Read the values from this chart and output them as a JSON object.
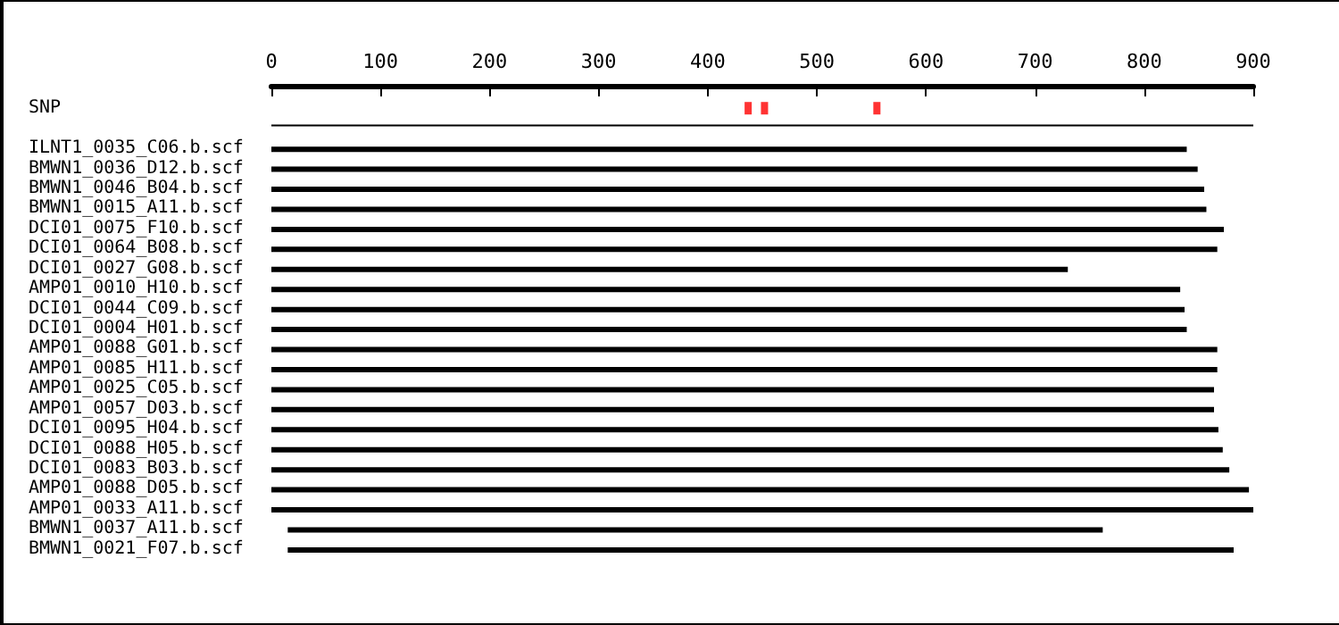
{
  "chart_data": {
    "type": "bar",
    "orientation": "horizontal",
    "categories": [
      "SNP",
      null,
      "ILNT1_0035_C06.b.scf",
      "BMWN1_0036_D12.b.scf",
      "BMWN1_0046_B04.b.scf",
      "BMWN1_0015_A11.b.scf",
      "DCI01_0075_F10.b.scf",
      "DCI01_0064_B08.b.scf",
      "DCI01_0027_G08.b.scf",
      "AMP01_0010_H10.b.scf",
      "DCI01_0044_C09.b.scf",
      "DCI01_0004_H01.b.scf",
      "AMP01_0088_G01.b.scf",
      "AMP01_0085_H11.b.scf",
      "AMP01_0025_C05.b.scf",
      "AMP01_0057_D03.b.scf",
      "DCI01_0095_H04.b.scf",
      "DCI01_0088_H05.b.scf",
      "DCI01_0083_B03.b.scf",
      "AMP01_0088_D05.b.scf",
      "AMP01_0033_A11.b.scf",
      "BMWN1_0037_A11.b.scf",
      "BMWN1_0021_F07.b.scf"
    ],
    "series": [
      {
        "type": "scatter",
        "color": "#ff0000",
        "marker": "square",
        "x": [
          "SNP",
          "SNP",
          "SNP"
        ],
        "values": [
          437,
          452,
          555
        ]
      },
      {
        "color": "#000000",
        "values": [
          null,
          900,
          null,
          null,
          null,
          null,
          null,
          null,
          null,
          null,
          null,
          null,
          null,
          null,
          null,
          null,
          null,
          null,
          null,
          null,
          null,
          null,
          null
        ],
        "base": [
          null,
          0,
          null,
          null,
          null,
          null,
          null,
          null,
          null,
          null,
          null,
          null,
          null,
          null,
          null,
          null,
          null,
          null,
          null,
          null,
          null,
          null,
          null
        ]
      },
      {
        "color": "#000000",
        "values": [
          null,
          null,
          839,
          849,
          855,
          857,
          873,
          867,
          730,
          833,
          837,
          839,
          867,
          867,
          864,
          864,
          868,
          872,
          878,
          896,
          900,
          747,
          867
        ],
        "base": [
          null,
          null,
          0,
          0,
          0,
          0,
          0,
          0,
          0,
          0,
          0,
          0,
          0,
          0,
          0,
          0,
          0,
          0,
          0,
          0,
          0,
          15,
          15
        ]
      }
    ],
    "xlim": [
      0,
      900
    ],
    "xticks": [
      0,
      100,
      200,
      300,
      400,
      500,
      600,
      700,
      800,
      900
    ],
    "grid": false
  }
}
